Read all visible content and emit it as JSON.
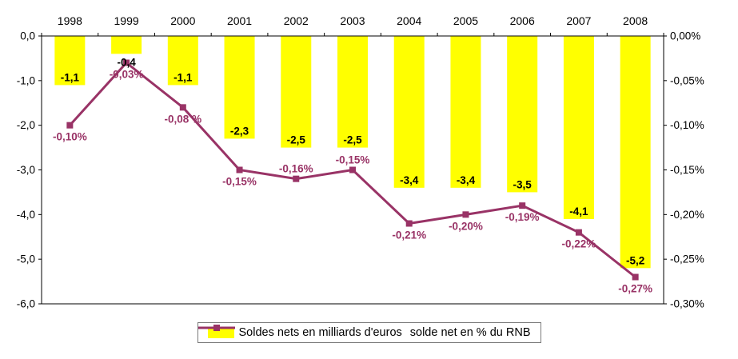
{
  "chart_data": {
    "type": "bar",
    "subtype": "bar+line-combo",
    "categories": [
      "1998",
      "1999",
      "2000",
      "2001",
      "2002",
      "2003",
      "2004",
      "2005",
      "2006",
      "2007",
      "2008"
    ],
    "series": [
      {
        "name": "Soldes nets en milliards d'euros",
        "type": "bar",
        "axis": "left",
        "color": "#FFFF00",
        "values": [
          -1.1,
          -0.4,
          -1.1,
          -2.3,
          -2.5,
          -2.5,
          -3.4,
          -3.4,
          -3.5,
          -4.1,
          -5.2
        ],
        "labels": [
          "-1,1",
          "-0,4",
          "-1,1",
          "-2,3",
          "-2,5",
          "-2,5",
          "-3,4",
          "-3,4",
          "-3,5",
          "-4,1",
          "-5,2"
        ],
        "label_color": "#000000"
      },
      {
        "name": "solde net en % du RNB",
        "type": "line",
        "axis": "right",
        "color": "#993366",
        "values": [
          -0.1,
          -0.03,
          -0.08,
          -0.15,
          -0.16,
          -0.15,
          -0.21,
          -0.2,
          -0.19,
          -0.22,
          -0.27
        ],
        "labels": [
          "-0,10%",
          "-0,03%",
          "-0,08 %",
          "-0,15%",
          "-0,16%",
          "-0,15%",
          "-0,21%",
          "-0,20%",
          "-0,19%",
          "-0,22%",
          "-0,27%"
        ],
        "label_color": "#993366"
      }
    ],
    "left_axis": {
      "min": -6,
      "max": 0,
      "tick_values": [
        0,
        -1,
        -2,
        -3,
        -4,
        -5,
        -6
      ],
      "ticks": [
        "0,0",
        "-1,0",
        "-2,0",
        "-3,0",
        "-4,0",
        "-5,0",
        "-6,0"
      ]
    },
    "right_axis": {
      "min": -0.3,
      "max": 0,
      "tick_values": [
        0,
        -0.05,
        -0.1,
        -0.15,
        -0.2,
        -0.25,
        -0.3
      ],
      "ticks": [
        "0,00%",
        "-0,05%",
        "-0,10%",
        "-0,15%",
        "-0,20%",
        "-0,25%",
        "-0,30%"
      ]
    },
    "grid": false,
    "legend_position": "bottom",
    "title": "",
    "axis_text_color": "#000000",
    "frame_color": "#000000"
  }
}
